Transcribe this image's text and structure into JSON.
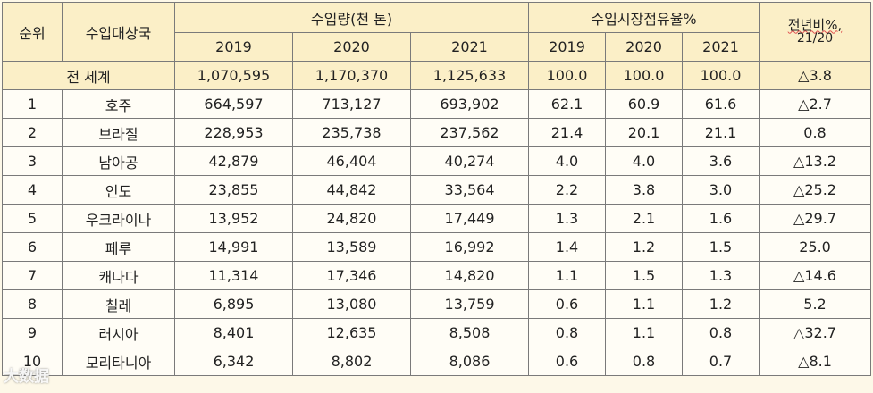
{
  "table": {
    "headers": {
      "rank": "순위",
      "country": "수입대상국",
      "volume_group": "수입량(천 톤)",
      "share_group": "수입시장점유율%",
      "yoy_top": "전년비%,",
      "yoy_sub": "21/20",
      "years": [
        "2019",
        "2020",
        "2021"
      ]
    },
    "world_row": {
      "label": "전 세계",
      "values": [
        "1,070,595",
        "1,170,370",
        "1,125,633",
        "100.0",
        "100.0",
        "100.0",
        "△3.8"
      ]
    },
    "rows": [
      {
        "rank": "1",
        "country": "호주",
        "values": [
          "664,597",
          "713,127",
          "693,902",
          "62.1",
          "60.9",
          "61.6",
          "△2.7"
        ]
      },
      {
        "rank": "2",
        "country": "브라질",
        "values": [
          "228,953",
          "235,738",
          "237,562",
          "21.4",
          "20.1",
          "21.1",
          "0.8"
        ]
      },
      {
        "rank": "3",
        "country": "남아공",
        "values": [
          "42,879",
          "46,404",
          "40,274",
          "4.0",
          "4.0",
          "3.6",
          "△13.2"
        ]
      },
      {
        "rank": "4",
        "country": "인도",
        "values": [
          "23,855",
          "44,842",
          "33,564",
          "2.2",
          "3.8",
          "3.0",
          "△25.2"
        ]
      },
      {
        "rank": "5",
        "country": "우크라이나",
        "values": [
          "13,952",
          "24,820",
          "17,449",
          "1.3",
          "2.1",
          "1.6",
          "△29.7"
        ]
      },
      {
        "rank": "6",
        "country": "페루",
        "values": [
          "14,991",
          "13,589",
          "16,992",
          "1.4",
          "1.2",
          "1.5",
          "25.0"
        ]
      },
      {
        "rank": "7",
        "country": "캐나다",
        "values": [
          "11,314",
          "17,346",
          "14,820",
          "1.1",
          "1.5",
          "1.3",
          "△14.6"
        ]
      },
      {
        "rank": "8",
        "country": "칠레",
        "values": [
          "6,895",
          "13,080",
          "13,759",
          "0.6",
          "1.1",
          "1.2",
          "5.2"
        ]
      },
      {
        "rank": "9",
        "country": "러시아",
        "values": [
          "8,401",
          "12,635",
          "8,508",
          "0.8",
          "1.1",
          "0.8",
          "△32.7"
        ]
      },
      {
        "rank": "10",
        "country": "모리타니아",
        "values": [
          "6,342",
          "8,802",
          "8,086",
          "0.6",
          "0.8",
          "0.7",
          "△8.1"
        ]
      }
    ]
  },
  "watermark": "大数据"
}
